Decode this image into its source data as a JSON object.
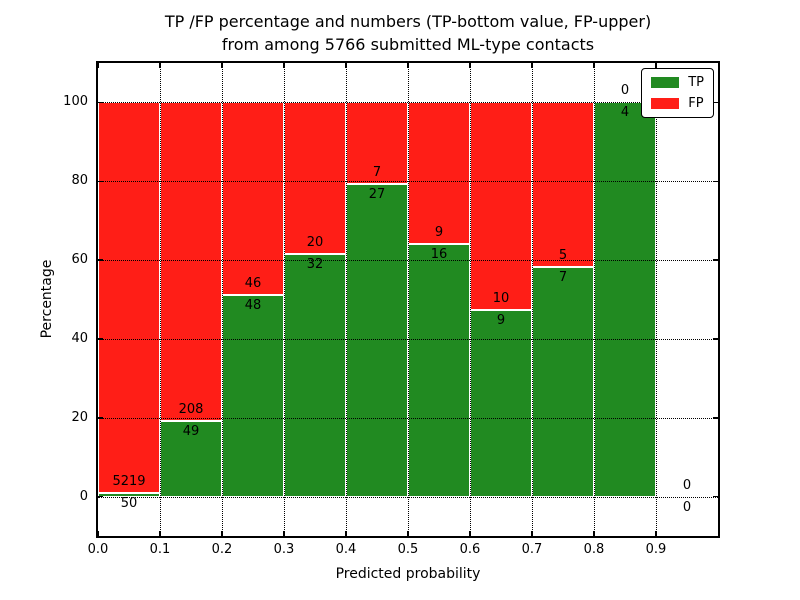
{
  "title": {
    "line1": "TP /FP percentage and numbers (TP-bottom value, FP-upper)",
    "line2": "from among 5766 submitted ML-type contacts"
  },
  "chart_data": {
    "type": "bar",
    "stacked": true,
    "title": "TP /FP percentage and numbers (TP-bottom value, FP-upper) from among 5766 submitted ML-type contacts",
    "xlabel": "Predicted probability",
    "ylabel": "Percentage",
    "total_submitted_contacts": 5766,
    "xlim": [
      0.0,
      1.0
    ],
    "ylim": [
      -10,
      110
    ],
    "x_ticks": [
      "0.0",
      "0.1",
      "0.2",
      "0.3",
      "0.4",
      "0.5",
      "0.6",
      "0.7",
      "0.8",
      "0.9"
    ],
    "y_ticks": [
      "0",
      "20",
      "40",
      "60",
      "80",
      "100"
    ],
    "grid": "dotted",
    "legend_position": "upper right",
    "colors": {
      "tp": "#218A21",
      "fp": "#FF1E17"
    },
    "categories": [
      "0.0-0.1",
      "0.1-0.2",
      "0.2-0.3",
      "0.3-0.4",
      "0.4-0.5",
      "0.5-0.6",
      "0.6-0.7",
      "0.7-0.8",
      "0.8-0.9",
      "0.9-1.0"
    ],
    "series": [
      {
        "name": "TP",
        "counts": [
          50,
          49,
          48,
          32,
          27,
          16,
          9,
          7,
          4,
          0
        ]
      },
      {
        "name": "FP",
        "counts": [
          5219,
          208,
          46,
          20,
          7,
          9,
          10,
          5,
          0,
          0
        ]
      }
    ],
    "tp_percent": [
      0.95,
      19.07,
      51.06,
      61.54,
      79.41,
      64.0,
      47.37,
      58.33,
      100.0,
      null
    ],
    "legend": [
      {
        "label": "TP",
        "color": "#218A21"
      },
      {
        "label": "FP",
        "color": "#FF1E17"
      }
    ]
  }
}
